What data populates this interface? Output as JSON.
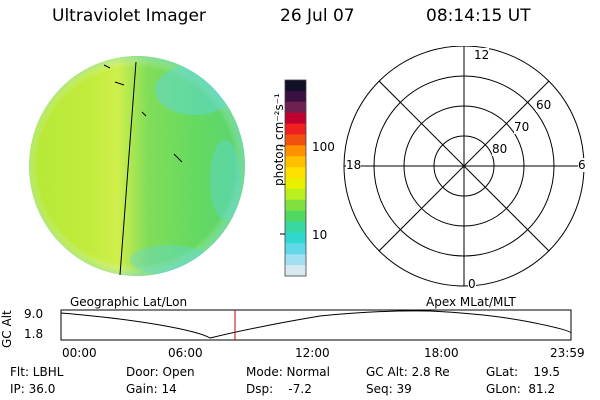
{
  "header": {
    "instrument": "Ultraviolet Imager",
    "date": "26 Jul 07",
    "time": "08:14:15 UT"
  },
  "colorbar": {
    "unit_label": "photon cm⁻²s⁻¹",
    "ticks": [
      "100",
      "10"
    ],
    "colors": [
      "#101028",
      "#3a1040",
      "#702050",
      "#c00030",
      "#f02020",
      "#f05010",
      "#ff9000",
      "#ffc000",
      "#ffe000",
      "#e8f000",
      "#b8f020",
      "#80e040",
      "#50d860",
      "#38d8a0",
      "#30d8d0",
      "#60d8e8",
      "#a0e0f0",
      "#d8e8f0"
    ]
  },
  "polar_plot": {
    "mlt_labels": {
      "top": "12",
      "left": "18",
      "right": "6",
      "bottom": "0"
    },
    "lat_labels": [
      "60",
      "70",
      "80"
    ]
  },
  "timeline": {
    "left_label": "Geographic Lat/Lon",
    "right_label": "Apex MLat/MLT",
    "y_axis_label": "GC Alt",
    "y_ticks": [
      "9.0",
      "1.8"
    ],
    "x_ticks": [
      "00:00",
      "06:00",
      "12:00",
      "18:00",
      "23:59"
    ],
    "marker_color": "#c00000"
  },
  "info": {
    "flt": "Flt: LBHL",
    "ip": "IP: 36.0",
    "door": "Door: Open",
    "gain": "Gain: 14",
    "mode": "Mode: Normal",
    "dsp": "Dsp:    -7.2",
    "gcalt": "GC Alt: 2.8 Re",
    "seq": "Seq: 39",
    "glat": "GLat:    19.5",
    "glon": "GLon:  81.2"
  }
}
